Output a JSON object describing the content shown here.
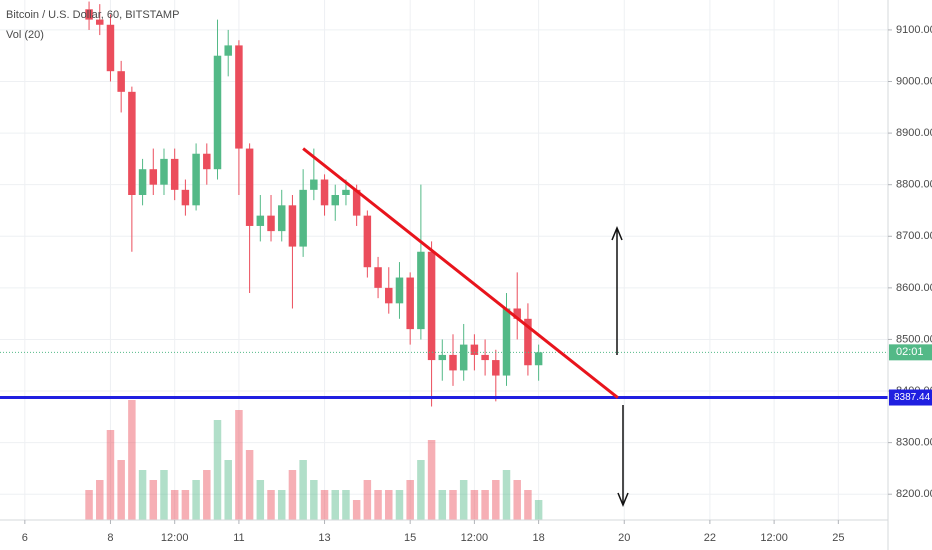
{
  "chart_data": {
    "type": "candlestick",
    "title": "Bitcoin / U.S. Dollar, 60, BITSTAMP",
    "subtitle": "Vol (20)",
    "x": [
      7.5,
      7.75,
      8.0,
      8.25,
      8.5,
      8.75,
      9.0,
      9.25,
      9.5,
      9.75,
      10.0,
      10.25,
      10.5,
      10.75,
      11.0,
      11.25,
      11.5,
      11.75,
      12.0,
      12.25,
      12.5,
      12.75,
      13.0,
      13.25,
      13.5,
      13.75,
      14.0,
      14.25,
      14.5,
      14.75,
      15.0,
      15.25,
      15.5,
      15.75,
      16.0,
      16.25,
      16.5,
      16.75,
      17.0,
      17.25,
      17.5,
      17.75,
      18.0
    ],
    "open": [
      9140,
      9120,
      9110,
      9020,
      8980,
      8780,
      8830,
      8800,
      8850,
      8790,
      8760,
      8860,
      8830,
      9050,
      9070,
      8870,
      8720,
      8740,
      8710,
      8760,
      8680,
      8790,
      8810,
      8760,
      8780,
      8790,
      8740,
      8640,
      8600,
      8570,
      8620,
      8520,
      8670,
      8460,
      8470,
      8440,
      8490,
      8470,
      8460,
      8430,
      8560,
      8540,
      8450
    ],
    "high": [
      9155,
      9150,
      9130,
      9040,
      8990,
      8850,
      8870,
      8870,
      8870,
      8810,
      8880,
      8880,
      9120,
      9100,
      9080,
      8880,
      8780,
      8780,
      8790,
      8780,
      8830,
      8870,
      8820,
      8800,
      8810,
      8800,
      8750,
      8660,
      8640,
      8650,
      8630,
      8800,
      8690,
      8500,
      8510,
      8530,
      8510,
      8500,
      8480,
      8590,
      8630,
      8570,
      8490
    ],
    "low": [
      9100,
      9090,
      9000,
      8940,
      8670,
      8760,
      8780,
      8780,
      8770,
      8740,
      8750,
      8800,
      8810,
      9010,
      8780,
      8590,
      8690,
      8690,
      8690,
      8560,
      8660,
      8770,
      8740,
      8730,
      8760,
      8720,
      8620,
      8580,
      8550,
      8540,
      8490,
      8500,
      8370,
      8420,
      8410,
      8420,
      8440,
      8430,
      8380,
      8410,
      8500,
      8430,
      8420
    ],
    "close": [
      9120,
      9110,
      9020,
      8980,
      8780,
      8830,
      8800,
      8850,
      8790,
      8760,
      8860,
      8830,
      9050,
      9070,
      8870,
      8720,
      8740,
      8710,
      8760,
      8680,
      8790,
      8810,
      8760,
      8780,
      8790,
      8740,
      8640,
      8600,
      8570,
      8620,
      8520,
      8670,
      8460,
      8470,
      8440,
      8490,
      8470,
      8460,
      8430,
      8560,
      8540,
      8450,
      8475
    ],
    "volume": [
      3,
      4,
      9,
      6,
      12,
      5,
      4,
      5,
      3,
      3,
      4,
      5,
      10,
      6,
      11,
      7,
      4,
      3,
      3,
      5,
      6,
      4,
      3,
      3,
      3,
      2,
      4,
      3,
      3,
      3,
      4,
      6,
      8,
      3,
      3,
      4,
      3,
      3,
      4,
      5,
      4,
      3,
      2
    ],
    "up_color": "#53b987",
    "down_color": "#eb4d5c",
    "xlim": [
      5.42,
      26.16
    ],
    "xticks": [
      6,
      8,
      {
        "value": 9.5,
        "label": "12:00"
      },
      11,
      13,
      15,
      {
        "value": 16.5,
        "label": "12:00"
      },
      18,
      20,
      22,
      {
        "value": 23.5,
        "label": "12:00"
      },
      25
    ],
    "ylim": [
      8150,
      9158
    ],
    "yticks": [
      {
        "value": 8200,
        "label": "8200.00"
      },
      {
        "value": 8300,
        "label": "8300.00"
      },
      {
        "value": 8400,
        "label": "8400.00"
      },
      {
        "value": 8500,
        "label": "8500.00"
      },
      {
        "value": 8600,
        "label": "8600.00"
      },
      {
        "value": 8700,
        "label": "8700.00"
      },
      {
        "value": 8800,
        "label": "8800.00"
      },
      {
        "value": 8900,
        "label": "8900.00"
      },
      {
        "value": 9000,
        "label": "9000.00"
      },
      {
        "value": 9100,
        "label": "9100.00"
      }
    ],
    "grid": true,
    "last_price": 8475,
    "countdown": "02:01",
    "support_line": 8387.44,
    "support_color": "#1f1fe0",
    "trendline": {
      "x": [
        12.5,
        19.85
      ],
      "y": [
        8870,
        8387
      ],
      "color": "#e8141c"
    }
  }
}
